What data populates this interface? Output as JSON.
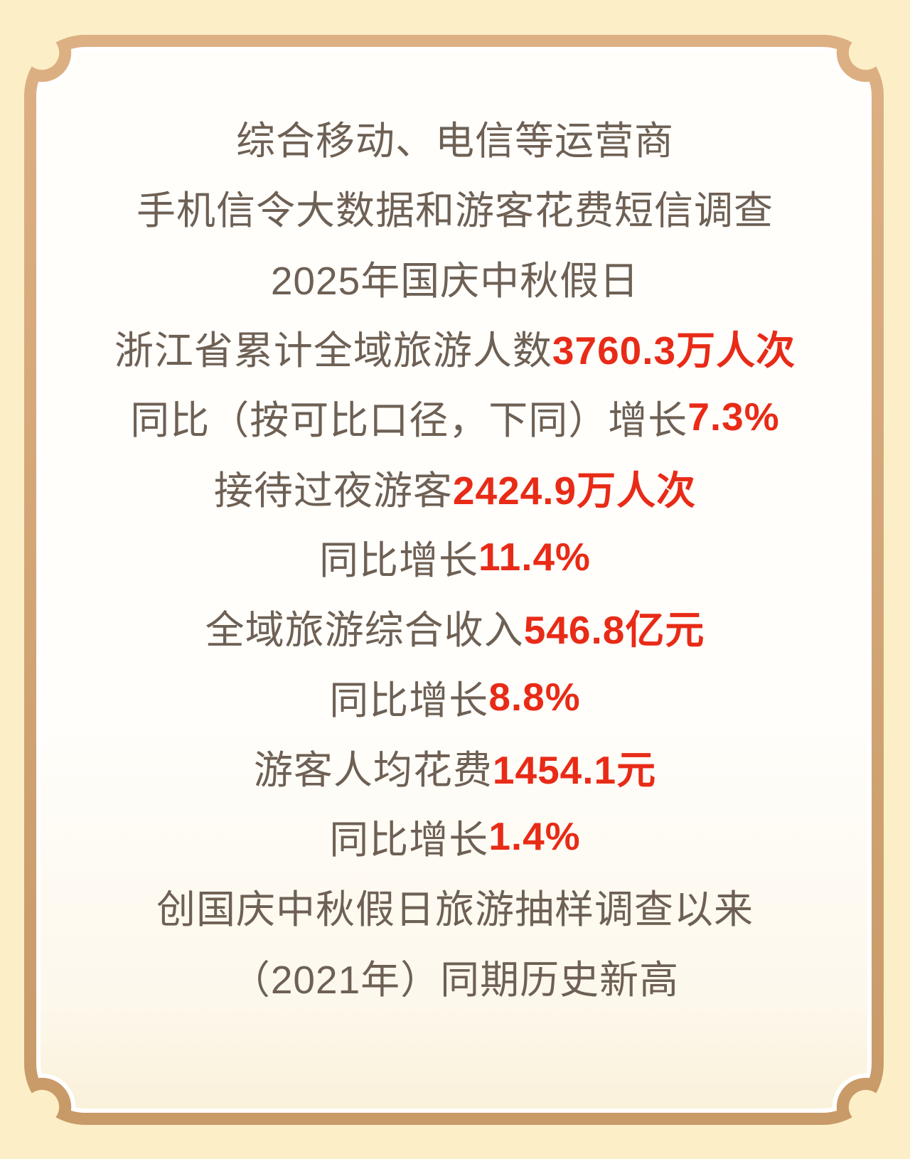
{
  "colors": {
    "background": "#FCEFC7",
    "frame_gold_light": "#DDB083",
    "frame_gold_dark": "#C89A68",
    "frame_inner_line": "#FFFFFF",
    "panel_top": "#FFFEFB",
    "panel_mid": "#FDF8EC",
    "panel_bottom": "#FAF1DA",
    "text_brown": "#6E6054",
    "accent_red": "#E82B17"
  },
  "content": {
    "lines": [
      {
        "segments": [
          {
            "text": "综合移动、电信等运营商",
            "emphasis": false
          }
        ]
      },
      {
        "segments": [
          {
            "text": "手机信令大数据和游客花费短信调查",
            "emphasis": false
          }
        ]
      },
      {
        "segments": [
          {
            "text": "2025年国庆中秋假日",
            "emphasis": false
          }
        ]
      },
      {
        "segments": [
          {
            "text": "浙江省累计全域旅游人数",
            "emphasis": false
          },
          {
            "text": "3760.3万人次",
            "emphasis": true
          }
        ]
      },
      {
        "segments": [
          {
            "text": "同比（按可比口径，下同）增长",
            "emphasis": false
          },
          {
            "text": "7.3%",
            "emphasis": true
          }
        ]
      },
      {
        "segments": [
          {
            "text": "接待过夜游客",
            "emphasis": false
          },
          {
            "text": "2424.9万人次",
            "emphasis": true
          }
        ]
      },
      {
        "segments": [
          {
            "text": "同比增长",
            "emphasis": false
          },
          {
            "text": "11.4%",
            "emphasis": true
          }
        ]
      },
      {
        "segments": [
          {
            "text": "全域旅游综合收入",
            "emphasis": false
          },
          {
            "text": "546.8亿元",
            "emphasis": true
          }
        ]
      },
      {
        "segments": [
          {
            "text": "同比增长",
            "emphasis": false
          },
          {
            "text": "8.8%",
            "emphasis": true
          }
        ]
      },
      {
        "segments": [
          {
            "text": "游客人均花费",
            "emphasis": false
          },
          {
            "text": "1454.1元",
            "emphasis": true
          }
        ]
      },
      {
        "segments": [
          {
            "text": "同比增长",
            "emphasis": false
          },
          {
            "text": "1.4%",
            "emphasis": true
          }
        ]
      },
      {
        "segments": [
          {
            "text": "创国庆中秋假日旅游抽样调查以来",
            "emphasis": false
          }
        ]
      },
      {
        "segments": [
          {
            "text": "（2021年）同期历史新高",
            "emphasis": false
          }
        ]
      }
    ]
  }
}
